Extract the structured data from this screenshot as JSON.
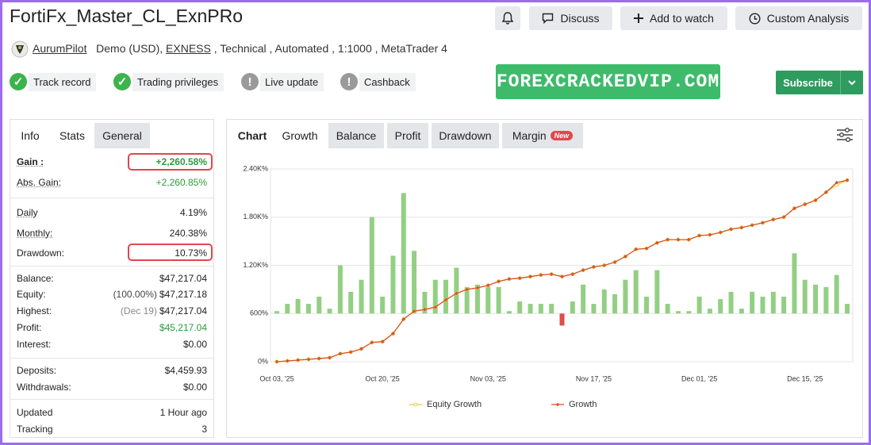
{
  "header": {
    "title": "FortiFx_Master_CL_ExnPRo",
    "buttons": [
      "Discuss",
      "Add to watch",
      "Custom Analysis"
    ]
  },
  "account": {
    "user": "AurumPilot",
    "details_before": "Demo (USD),",
    "broker": "EXNESS",
    "details_after": ", Technical , Automated , 1:1000 , MetaTrader 4"
  },
  "badges": [
    "Track record",
    "Trading privileges",
    "Live update",
    "Cashback"
  ],
  "banner": "FOREXCRACKEDVIP.COM",
  "subscribe": "Subscribe",
  "stats": {
    "tabs": [
      "Info",
      "Stats",
      "General"
    ],
    "rows": [
      {
        "label": "Gain :",
        "value": "+2,260.58%"
      },
      {
        "label": "Abs. Gain:",
        "value": "+2,260.85%"
      },
      {
        "label": "Daily",
        "value": "4.19%"
      },
      {
        "label": "Monthly:",
        "value": "240.38%"
      },
      {
        "label": "Drawdown:",
        "value": "10.73%"
      },
      {
        "label": "Balance:",
        "value": "$47,217.04"
      },
      {
        "label": "Equity:",
        "note": "(100.00%)",
        "value": "$47,217.18"
      },
      {
        "label": "Highest:",
        "note": "(Dec 19)",
        "value": "$47,217.04"
      },
      {
        "label": "Profit:",
        "value": "$45,217.04"
      },
      {
        "label": "Interest:",
        "value": "$0.00"
      },
      {
        "label": "Deposits:",
        "value": "$4,459.93"
      },
      {
        "label": "Withdrawals:",
        "value": "$0.00"
      },
      {
        "label": "Updated",
        "value": "1 Hour ago"
      },
      {
        "label": "Tracking",
        "value": "3"
      }
    ]
  },
  "chart_tabs": {
    "label": "Chart",
    "tabs": [
      "Growth",
      "Balance",
      "Profit",
      "Drawdown",
      "Margin"
    ],
    "badge": "New"
  },
  "chart_data": {
    "type": "combo",
    "grid": true,
    "legend": "bottom",
    "categories": [
      "Oct 03, '25",
      null,
      null,
      null,
      null,
      null,
      null,
      null,
      null,
      null,
      "Oct 20, '25",
      null,
      null,
      null,
      null,
      null,
      null,
      null,
      null,
      null,
      "Nov 03, '25",
      null,
      null,
      null,
      null,
      null,
      null,
      null,
      null,
      null,
      "Nov 17, '25",
      null,
      null,
      null,
      null,
      null,
      null,
      null,
      null,
      null,
      "Dec 01, '25",
      null,
      null,
      null,
      null,
      null,
      null,
      null,
      null,
      null,
      "Dec 15, '25",
      null,
      null,
      null,
      null
    ],
    "ylim": [
      0,
      2400
    ],
    "yticks": [
      {
        "value": 0,
        "label": "0%"
      },
      {
        "value": 600,
        "label": "600%"
      },
      {
        "value": 1200,
        "label": "1.20K%"
      },
      {
        "value": 1800,
        "label": "1.80K%"
      },
      {
        "value": 2400,
        "label": "2.40K%"
      }
    ],
    "y2lim": [
      -10,
      30
    ],
    "series": [
      {
        "name": "Equity Growth",
        "type": "line",
        "color": "#f2c744",
        "marker": "circle",
        "values": [
          0,
          10,
          20,
          30,
          40,
          50,
          100,
          120,
          160,
          240,
          250,
          350,
          530,
          630,
          650,
          680,
          770,
          850,
          900,
          920,
          950,
          1000,
          1030,
          1040,
          1060,
          1080,
          1090,
          1060,
          1090,
          1140,
          1180,
          1200,
          1240,
          1310,
          1400,
          1410,
          1480,
          1520,
          1520,
          1520,
          1570,
          1580,
          1610,
          1650,
          1670,
          1700,
          1730,
          1770,
          1800,
          1910,
          1960,
          2010,
          2110,
          2200,
          2260
        ]
      },
      {
        "name": "Growth",
        "type": "line",
        "color": "#d4562a",
        "marker": "diamond",
        "values": [
          0,
          10,
          20,
          30,
          40,
          50,
          100,
          120,
          160,
          240,
          250,
          350,
          530,
          630,
          650,
          680,
          770,
          850,
          900,
          920,
          950,
          1000,
          1030,
          1040,
          1060,
          1080,
          1090,
          1060,
          1090,
          1140,
          1180,
          1200,
          1240,
          1310,
          1400,
          1410,
          1480,
          1520,
          1520,
          1520,
          1570,
          1580,
          1610,
          1650,
          1670,
          1700,
          1730,
          1770,
          1800,
          1910,
          1960,
          2010,
          2110,
          2230,
          2260
        ]
      },
      {
        "type": "bar",
        "axis": "y2",
        "color": "#93cf83",
        "negative_color": "#e24b4b",
        "values": [
          0.5,
          2,
          3,
          2,
          3.5,
          1,
          10,
          4.5,
          7,
          20,
          3.5,
          12,
          25,
          13,
          4.5,
          7,
          7,
          9.5,
          5.5,
          6,
          5.5,
          5.5,
          0.5,
          2.5,
          2,
          2,
          2,
          -2.5,
          2.5,
          6,
          2,
          5,
          4,
          7,
          9,
          3.5,
          9,
          2,
          0.5,
          0.5,
          3.5,
          1,
          3,
          4.5,
          1,
          4.5,
          3.5,
          4.5,
          3.5,
          12.5,
          7,
          6,
          5.5,
          8,
          2
        ]
      }
    ]
  }
}
